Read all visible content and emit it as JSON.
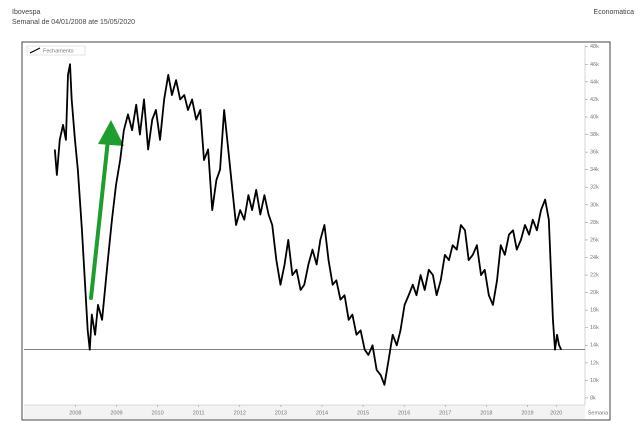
{
  "header": {
    "title": "Ibovespa",
    "subtitle": "Semanal de 04/01/2008 ate 15/05/2020",
    "brand": "Economatica"
  },
  "chart_data": {
    "type": "line",
    "x_label": "Semana",
    "x": [
      2008.0,
      2008.05,
      2008.12,
      2008.2,
      2008.27,
      2008.32,
      2008.37,
      2008.41,
      2008.49,
      2008.56,
      2008.66,
      2008.73,
      2008.8,
      2008.85,
      2008.9,
      2008.98,
      2009.05,
      2009.15,
      2009.22,
      2009.29,
      2009.39,
      2009.49,
      2009.59,
      2009.68,
      2009.78,
      2009.88,
      2009.98,
      2010.07,
      2010.17,
      2010.27,
      2010.37,
      2010.46,
      2010.56,
      2010.66,
      2010.76,
      2010.85,
      2010.95,
      2011.05,
      2011.15,
      2011.24,
      2011.34,
      2011.44,
      2011.54,
      2011.63,
      2011.73,
      2011.83,
      2011.93,
      2012.02,
      2012.12,
      2012.22,
      2012.32,
      2012.41,
      2012.51,
      2012.61,
      2012.71,
      2012.8,
      2012.9,
      2013.0,
      2013.1,
      2013.2,
      2013.29,
      2013.39,
      2013.49,
      2013.59,
      2013.68,
      2013.78,
      2013.88,
      2013.98,
      2014.07,
      2014.17,
      2014.27,
      2014.37,
      2014.46,
      2014.56,
      2014.66,
      2014.76,
      2014.85,
      2014.95,
      2015.05,
      2015.15,
      2015.24,
      2015.34,
      2015.44,
      2015.54,
      2015.63,
      2015.73,
      2015.83,
      2015.93,
      2016.02,
      2016.12,
      2016.22,
      2016.32,
      2016.41,
      2016.51,
      2016.61,
      2016.71,
      2016.8,
      2016.9,
      2017.0,
      2017.1,
      2017.2,
      2017.29,
      2017.39,
      2017.49,
      2017.59,
      2017.68,
      2017.78,
      2017.88,
      2017.98,
      2018.07,
      2018.17,
      2018.27,
      2018.37,
      2018.46,
      2018.56,
      2018.66,
      2018.76,
      2018.85,
      2018.95,
      2019.05,
      2019.15,
      2019.24,
      2019.34,
      2019.44,
      2019.54,
      2019.63,
      2019.73,
      2019.83,
      2019.93,
      2020.02,
      2020.07,
      2020.12,
      2020.17,
      2020.22,
      2020.27,
      2020.32
    ],
    "series": [
      {
        "name": "Fechamento",
        "color": "#000000",
        "values": [
          36300,
          33400,
          37400,
          39100,
          37400,
          44800,
          46000,
          42000,
          37400,
          34000,
          27100,
          21400,
          15700,
          13500,
          17500,
          15200,
          18600,
          16900,
          20300,
          23700,
          28300,
          32300,
          35100,
          38500,
          40300,
          38500,
          41400,
          38000,
          42000,
          36300,
          39700,
          40800,
          37400,
          42000,
          44800,
          42500,
          44200,
          42000,
          42500,
          40800,
          42000,
          39700,
          40800,
          35100,
          36300,
          29400,
          32800,
          34000,
          40800,
          36300,
          31700,
          27700,
          29400,
          28300,
          31100,
          29400,
          31700,
          28900,
          31100,
          28900,
          27700,
          23700,
          20900,
          23200,
          26000,
          22000,
          22600,
          20300,
          20900,
          23200,
          24900,
          23200,
          26000,
          27700,
          23700,
          20900,
          21400,
          19200,
          19700,
          16900,
          17500,
          15200,
          15700,
          13500,
          12900,
          14000,
          11200,
          10600,
          9500,
          12300,
          15200,
          14000,
          15700,
          18600,
          19700,
          20900,
          19700,
          22000,
          20300,
          22600,
          22000,
          19700,
          21400,
          24300,
          23700,
          25400,
          24900,
          27700,
          27100,
          23700,
          24300,
          25400,
          22000,
          22600,
          19700,
          18600,
          21400,
          25400,
          24300,
          26600,
          27100,
          24900,
          26000,
          27700,
          26600,
          28300,
          27100,
          29400,
          30600,
          28300,
          22600,
          16900,
          13500,
          15200,
          14000,
          13500
        ]
      }
    ],
    "reference_line": 13500,
    "xlim": [
      2007.25,
      2020.9
    ],
    "xticks": [
      {
        "value": 2008.5,
        "label": "2008"
      },
      {
        "value": 2009.5,
        "label": "2009"
      },
      {
        "value": 2010.5,
        "label": "2010"
      },
      {
        "value": 2011.5,
        "label": "2011"
      },
      {
        "value": 2012.5,
        "label": "2012"
      },
      {
        "value": 2013.5,
        "label": "2013"
      },
      {
        "value": 2014.5,
        "label": "2014"
      },
      {
        "value": 2015.5,
        "label": "2015"
      },
      {
        "value": 2016.5,
        "label": "2016"
      },
      {
        "value": 2017.5,
        "label": "2017"
      },
      {
        "value": 2018.5,
        "label": "2018"
      },
      {
        "value": 2019.5,
        "label": "2019"
      },
      {
        "value": 2020.2,
        "label": "2020"
      }
    ],
    "ylim": [
      7200,
      48200
    ],
    "yticks": [
      {
        "value": 8000,
        "label": "8k"
      },
      {
        "value": 10000,
        "label": "10k"
      },
      {
        "value": 12000,
        "label": "12k"
      },
      {
        "value": 14000,
        "label": "14k"
      },
      {
        "value": 16000,
        "label": "16k"
      },
      {
        "value": 18000,
        "label": "18k"
      },
      {
        "value": 20000,
        "label": "20k"
      },
      {
        "value": 22000,
        "label": "22k"
      },
      {
        "value": 24000,
        "label": "24k"
      },
      {
        "value": 26000,
        "label": "26k"
      },
      {
        "value": 28000,
        "label": "28k"
      },
      {
        "value": 30000,
        "label": "30k"
      },
      {
        "value": 32000,
        "label": "32k"
      },
      {
        "value": 34000,
        "label": "34k"
      },
      {
        "value": 36000,
        "label": "36k"
      },
      {
        "value": 38000,
        "label": "38k"
      },
      {
        "value": 40000,
        "label": "40k"
      },
      {
        "value": 42000,
        "label": "42k"
      },
      {
        "value": 44000,
        "label": "44k"
      },
      {
        "value": 46000,
        "label": "46k"
      },
      {
        "value": 48000,
        "label": "48k"
      }
    ],
    "legend": "top-left"
  }
}
